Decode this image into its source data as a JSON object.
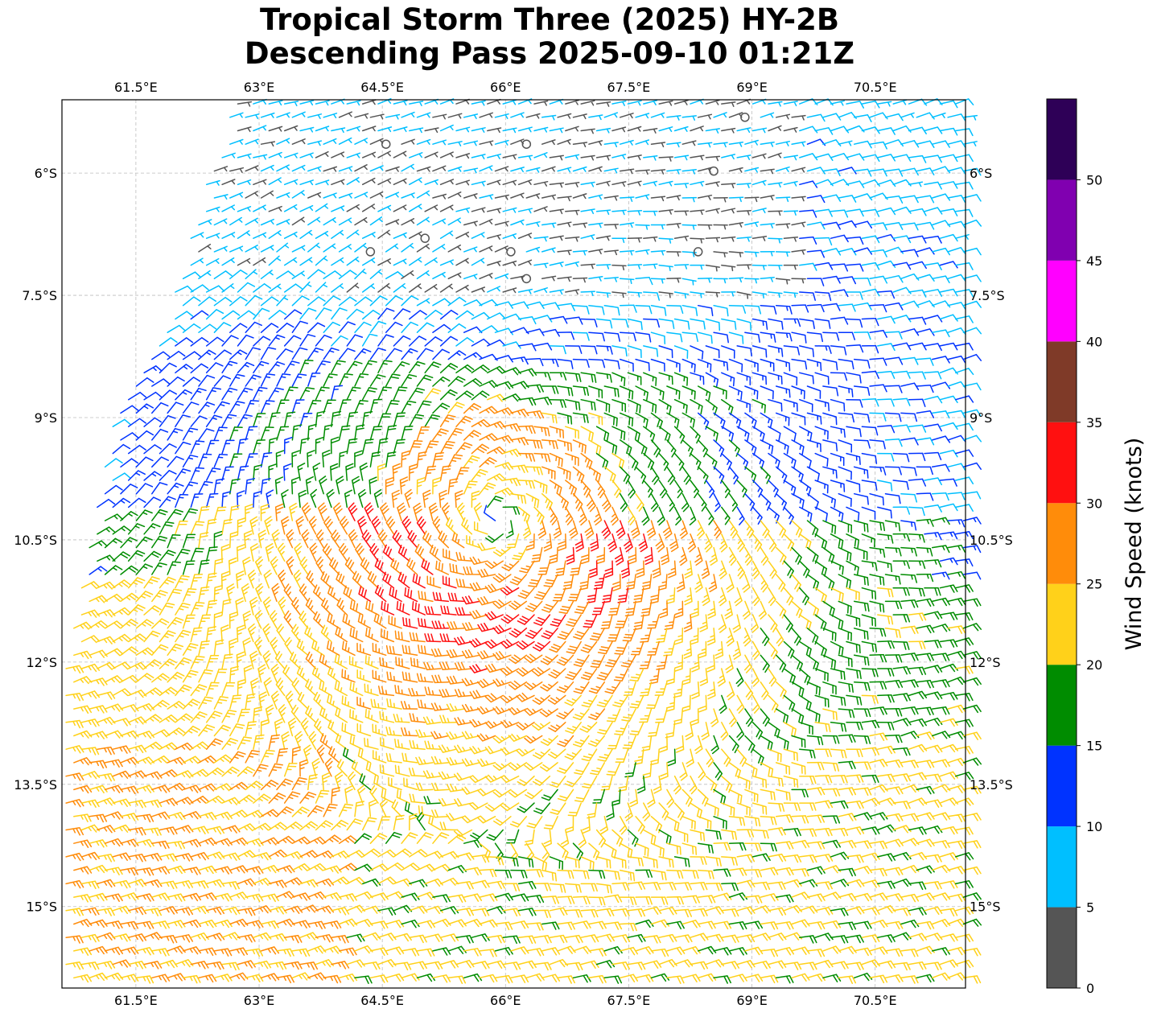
{
  "chart_data": {
    "type": "wind_barb_map",
    "title_lines": [
      "Tropical Storm Three (2025) HY-2B",
      "Descending Pass 2025-09-10 01:21Z"
    ],
    "lon_range": [
      60.6,
      71.6
    ],
    "lat_range": [
      -16.0,
      -5.1
    ],
    "lon_ticks": [
      "61.5°E",
      "63°E",
      "64.5°E",
      "66°E",
      "67.5°E",
      "69°E",
      "70.5°E"
    ],
    "lat_ticks": [
      "6°S",
      "7.5°S",
      "9°S",
      "10.5°S",
      "12°S",
      "13.5°S",
      "15°S"
    ],
    "lon_tick_values": [
      61.5,
      63,
      64.5,
      66,
      67.5,
      69,
      70.5
    ],
    "lat_tick_values": [
      -6,
      -7.5,
      -9,
      -10.5,
      -12,
      -13.5,
      -15
    ],
    "grid": true,
    "storm_center_lonlat": [
      65.9,
      -10.25
    ],
    "colorbar": {
      "label": "Wind Speed (knots)",
      "ticks": [
        "0",
        "5",
        "10",
        "15",
        "20",
        "25",
        "30",
        "35",
        "40",
        "45",
        "50"
      ],
      "range": [
        0,
        55
      ],
      "colors": [
        "#555555",
        "#00bfff",
        "#0033ff",
        "#008c00",
        "#ffd11a",
        "#ff8c0a",
        "#ff1010",
        "#7f3a28",
        "#ff00ff",
        "#8000b0",
        "#2e0057"
      ]
    }
  }
}
